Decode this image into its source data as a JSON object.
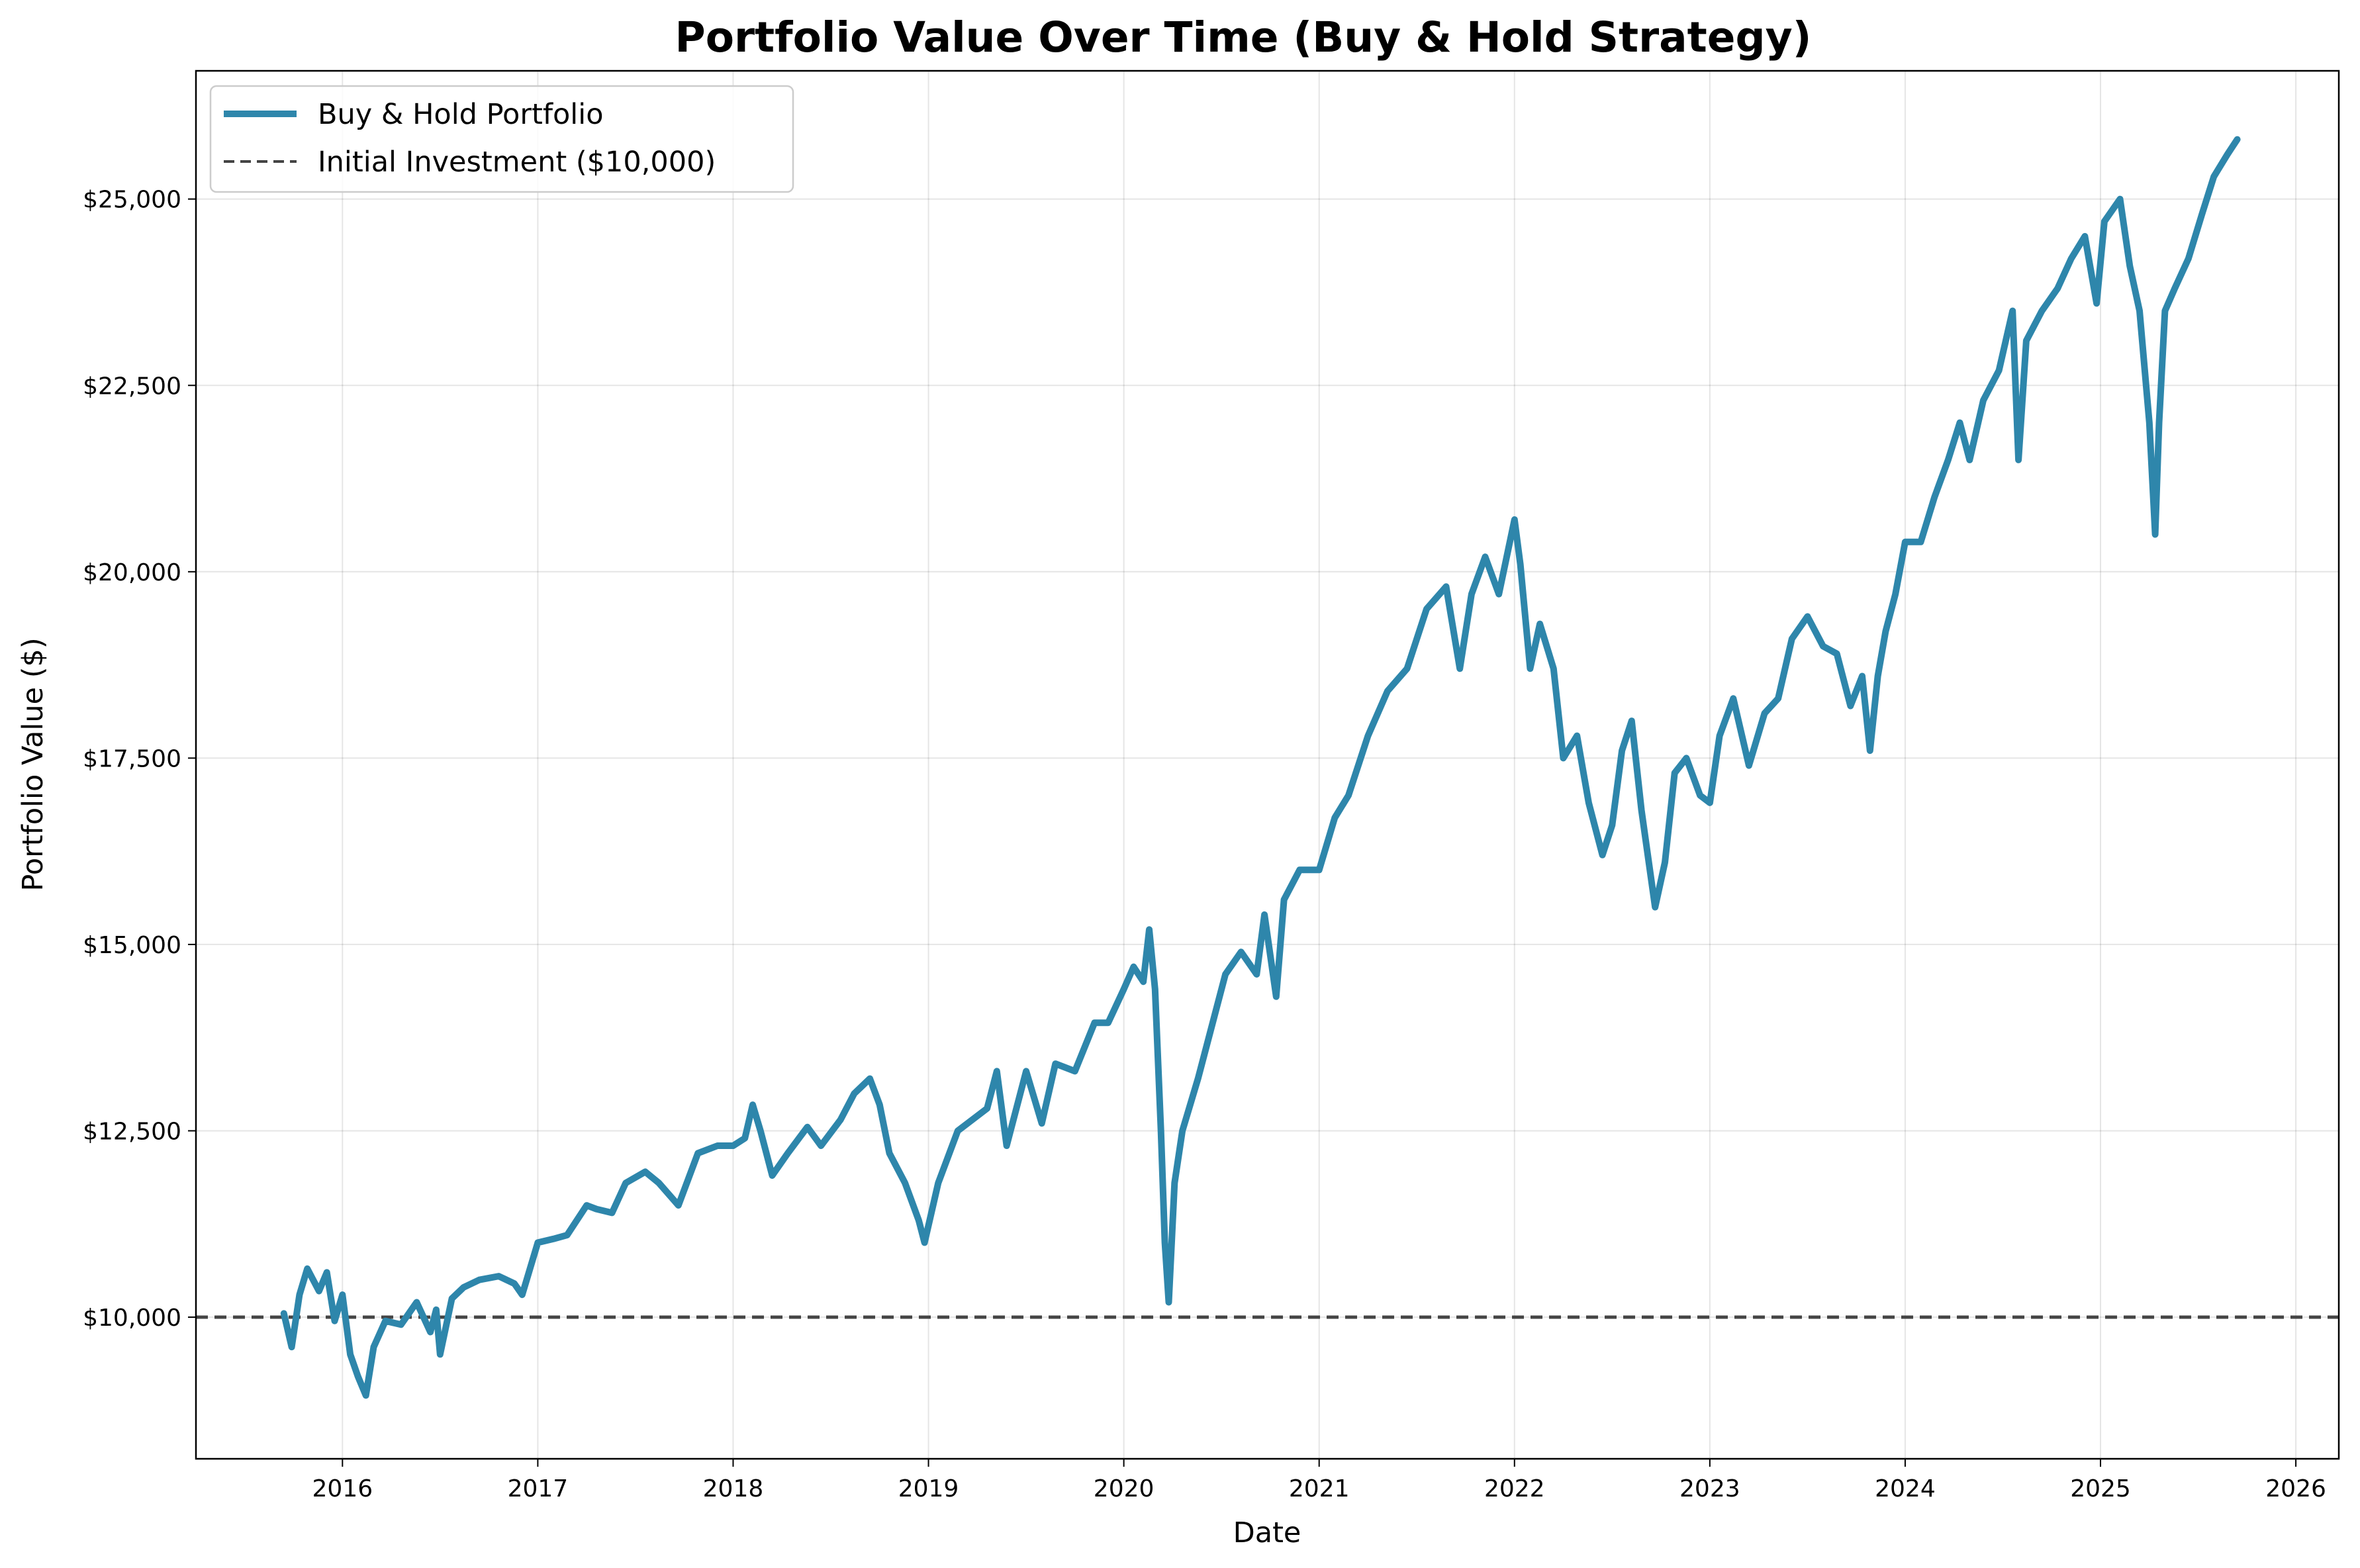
{
  "chart_data": {
    "type": "line",
    "title": "Portfolio Value Over Time (Buy & Hold Strategy)",
    "xlabel": "Date",
    "ylabel": "Portfolio Value ($)",
    "xlim": [
      2015.25,
      2026.22
    ],
    "ylim": [
      8100,
      26720
    ],
    "grid": true,
    "legend_position": "top-left",
    "x_ticks": [
      2016,
      2017,
      2018,
      2019,
      2020,
      2021,
      2022,
      2023,
      2024,
      2025,
      2026
    ],
    "x_tick_labels": [
      "2016",
      "2017",
      "2018",
      "2019",
      "2020",
      "2021",
      "2022",
      "2023",
      "2024",
      "2025",
      "2026"
    ],
    "y_ticks": [
      10000,
      12500,
      15000,
      17500,
      20000,
      22500,
      25000
    ],
    "y_tick_labels": [
      "$10,000",
      "$12,500",
      "$15,000",
      "$17,500",
      "$20,000",
      "$22,500",
      "$25,000"
    ],
    "series": [
      {
        "name": "Buy & Hold Portfolio",
        "color": "#2e86ab",
        "x": [
          2015.7,
          2015.74,
          2015.78,
          2015.82,
          2015.88,
          2015.92,
          2015.96,
          2016.0,
          2016.04,
          2016.08,
          2016.12,
          2016.16,
          2016.22,
          2016.3,
          2016.38,
          2016.45,
          2016.48,
          2016.5,
          2016.56,
          2016.62,
          2016.7,
          2016.8,
          2016.88,
          2016.92,
          2017.0,
          2017.08,
          2017.15,
          2017.25,
          2017.3,
          2017.38,
          2017.45,
          2017.55,
          2017.62,
          2017.72,
          2017.82,
          2017.92,
          2018.0,
          2018.06,
          2018.1,
          2018.14,
          2018.2,
          2018.28,
          2018.38,
          2018.45,
          2018.55,
          2018.62,
          2018.7,
          2018.75,
          2018.8,
          2018.88,
          2018.95,
          2018.98,
          2019.05,
          2019.15,
          2019.3,
          2019.35,
          2019.4,
          2019.5,
          2019.58,
          2019.65,
          2019.75,
          2019.85,
          2019.92,
          2020.0,
          2020.05,
          2020.1,
          2020.13,
          2020.16,
          2020.19,
          2020.21,
          2020.23,
          2020.26,
          2020.3,
          2020.38,
          2020.45,
          2020.52,
          2020.6,
          2020.68,
          2020.72,
          2020.78,
          2020.82,
          2020.9,
          2021.0,
          2021.08,
          2021.15,
          2021.25,
          2021.35,
          2021.45,
          2021.55,
          2021.65,
          2021.72,
          2021.78,
          2021.85,
          2021.92,
          2022.0,
          2022.03,
          2022.08,
          2022.13,
          2022.2,
          2022.25,
          2022.32,
          2022.38,
          2022.45,
          2022.5,
          2022.55,
          2022.6,
          2022.65,
          2022.72,
          2022.77,
          2022.82,
          2022.88,
          2022.95,
          2023.0,
          2023.05,
          2023.12,
          2023.2,
          2023.28,
          2023.35,
          2023.42,
          2023.5,
          2023.58,
          2023.65,
          2023.72,
          2023.78,
          2023.82,
          2023.86,
          2023.9,
          2023.95,
          2024.0,
          2024.08,
          2024.15,
          2024.22,
          2024.28,
          2024.33,
          2024.4,
          2024.48,
          2024.55,
          2024.58,
          2024.62,
          2024.7,
          2024.78,
          2024.85,
          2024.92,
          2024.98,
          2025.02,
          2025.1,
          2025.15,
          2025.2,
          2025.25,
          2025.28,
          2025.3,
          2025.33,
          2025.38,
          2025.45,
          2025.52,
          2025.58,
          2025.65,
          2025.7
        ],
        "y": [
          10050,
          9600,
          10300,
          10650,
          10350,
          10600,
          9950,
          10300,
          9500,
          9200,
          8950,
          9600,
          9950,
          9900,
          10200,
          9800,
          10100,
          9500,
          10250,
          10400,
          10500,
          10550,
          10450,
          10300,
          11000,
          11050,
          11100,
          11500,
          11450,
          11400,
          11800,
          11950,
          11800,
          11500,
          12200,
          12300,
          12300,
          12400,
          12850,
          12500,
          11900,
          12200,
          12550,
          12300,
          12650,
          13000,
          13200,
          12850,
          12200,
          11800,
          11300,
          11000,
          11800,
          12500,
          12800,
          13300,
          12300,
          13300,
          12600,
          13400,
          13300,
          13950,
          13950,
          14400,
          14700,
          14500,
          15200,
          14400,
          12500,
          11000,
          10200,
          11800,
          12500,
          13200,
          13900,
          14600,
          14900,
          14600,
          15400,
          14300,
          15600,
          16000,
          16000,
          16700,
          17000,
          17800,
          18400,
          18700,
          19500,
          19800,
          18700,
          19700,
          20200,
          19700,
          20700,
          20100,
          18700,
          19300,
          18700,
          17500,
          17800,
          16900,
          16200,
          16600,
          17600,
          18000,
          16800,
          15500,
          16100,
          17300,
          17500,
          17000,
          16900,
          17800,
          18300,
          17400,
          18100,
          18300,
          19100,
          19400,
          19000,
          18900,
          18200,
          18600,
          17600,
          18600,
          19200,
          19700,
          20400,
          20400,
          21000,
          21500,
          22000,
          21500,
          22300,
          22700,
          23500,
          21500,
          23100,
          23500,
          23800,
          24200,
          24500,
          23600,
          24700,
          25000,
          24100,
          23500,
          22000,
          20500,
          22000,
          23500,
          23800,
          24200,
          24800,
          25300,
          25600,
          25800
        ]
      },
      {
        "name": "Initial Investment ($10,000)",
        "color": "#444444",
        "y": 10000,
        "style": "dashed"
      }
    ]
  }
}
